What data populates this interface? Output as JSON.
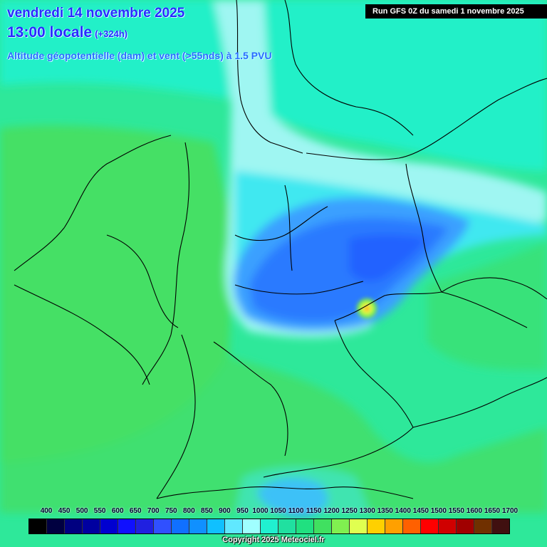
{
  "header": {
    "date": "vendredi 14 novembre 2025",
    "time": "13:00 locale",
    "forecast_offset": "(+324h)",
    "subtitle": "Altitude géopotentielle (dam) et vent (>55nds) à 1.5 PVU",
    "run": "Run GFS 0Z du samedi 1 novembre 2025"
  },
  "legend": {
    "labels": [
      "400",
      "450",
      "500",
      "550",
      "600",
      "650",
      "700",
      "750",
      "800",
      "850",
      "900",
      "950",
      "1000",
      "1050",
      "1100",
      "1150",
      "1200",
      "1250",
      "1300",
      "1350",
      "1400",
      "1450",
      "1500",
      "1550",
      "1600",
      "1650",
      "1700"
    ],
    "colors": [
      "#000000",
      "#000040",
      "#000080",
      "#0000a0",
      "#0000d0",
      "#1010ff",
      "#2020e0",
      "#3050ff",
      "#1070ff",
      "#1090ff",
      "#10c0ff",
      "#60e8ff",
      "#a0ffff",
      "#20f0d0",
      "#20e0a0",
      "#20e080",
      "#40e060",
      "#80f050",
      "#e0ff50",
      "#ffd000",
      "#ffa000",
      "#ff6000",
      "#ff0000",
      "#d00000",
      "#a00000",
      "#703000",
      "#401010"
    ]
  },
  "copyright": "Copyright 2025 Meteociel.fr"
}
